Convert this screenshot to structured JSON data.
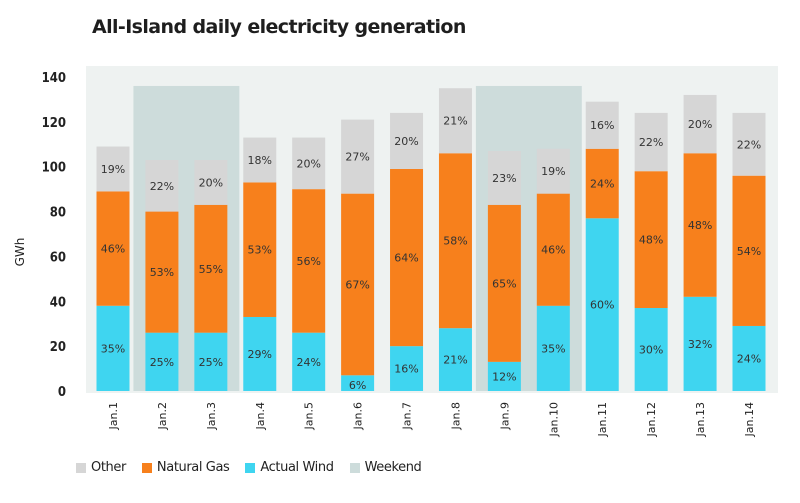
{
  "chart_data": {
    "type": "bar",
    "stacked": true,
    "title": "All-Island daily electricity generation",
    "xlabel": "",
    "ylabel": "GWh",
    "ylim": [
      0,
      140
    ],
    "yticks": [
      0,
      20,
      40,
      60,
      80,
      100,
      120,
      140
    ],
    "ytick_labels": [
      "0",
      "20",
      "40",
      "60",
      "80",
      "100",
      "120",
      "140"
    ],
    "grid": false,
    "legend_position": "bottom-left",
    "categories": [
      "Jan.1",
      "Jan.2",
      "Jan.3",
      "Jan.4",
      "Jan.5",
      "Jan.6",
      "Jan.7",
      "Jan.8",
      "Jan.9",
      "Jan.10",
      "Jan.11",
      "Jan.12",
      "Jan.13",
      "Jan.14"
    ],
    "series": [
      {
        "name": "Actual Wind",
        "color": "#3fd5f0",
        "values": [
          38,
          26,
          26,
          33,
          26,
          7,
          20,
          28,
          13,
          38,
          77,
          37,
          42,
          29
        ],
        "labels": [
          "35%",
          "25%",
          "25%",
          "29%",
          "24%",
          "6%",
          "16%",
          "21%",
          "12%",
          "35%",
          "60%",
          "30%",
          "32%",
          "24%"
        ]
      },
      {
        "name": "Natural Gas",
        "color": "#f7801c",
        "values": [
          51,
          54,
          57,
          60,
          64,
          81,
          79,
          78,
          70,
          50,
          31,
          61,
          64,
          67
        ],
        "labels": [
          "46%",
          "53%",
          "55%",
          "53%",
          "56%",
          "67%",
          "64%",
          "58%",
          "65%",
          "46%",
          "24%",
          "48%",
          "48%",
          "54%"
        ]
      },
      {
        "name": "Other",
        "color": "#d6d6d6",
        "values": [
          20,
          23,
          20,
          20,
          23,
          33,
          25,
          29,
          24,
          20,
          21,
          26,
          26,
          28
        ],
        "labels": [
          "19%",
          "22%",
          "20%",
          "18%",
          "20%",
          "27%",
          "20%",
          "21%",
          "23%",
          "19%",
          "16%",
          "22%",
          "20%",
          "22%"
        ]
      }
    ],
    "weekend": {
      "name": "Weekend",
      "color": "#cddcdb",
      "categories": [
        [
          "Jan.2",
          "Jan.3"
        ],
        [
          "Jan.9",
          "Jan.10"
        ]
      ]
    },
    "legend": [
      {
        "name": "Other",
        "color": "#d6d6d6"
      },
      {
        "name": "Natural Gas",
        "color": "#f7801c"
      },
      {
        "name": "Actual Wind",
        "color": "#3fd5f0"
      },
      {
        "name": "Weekend",
        "color": "#cddcdb"
      }
    ],
    "plot_background": "#eef2f1"
  }
}
